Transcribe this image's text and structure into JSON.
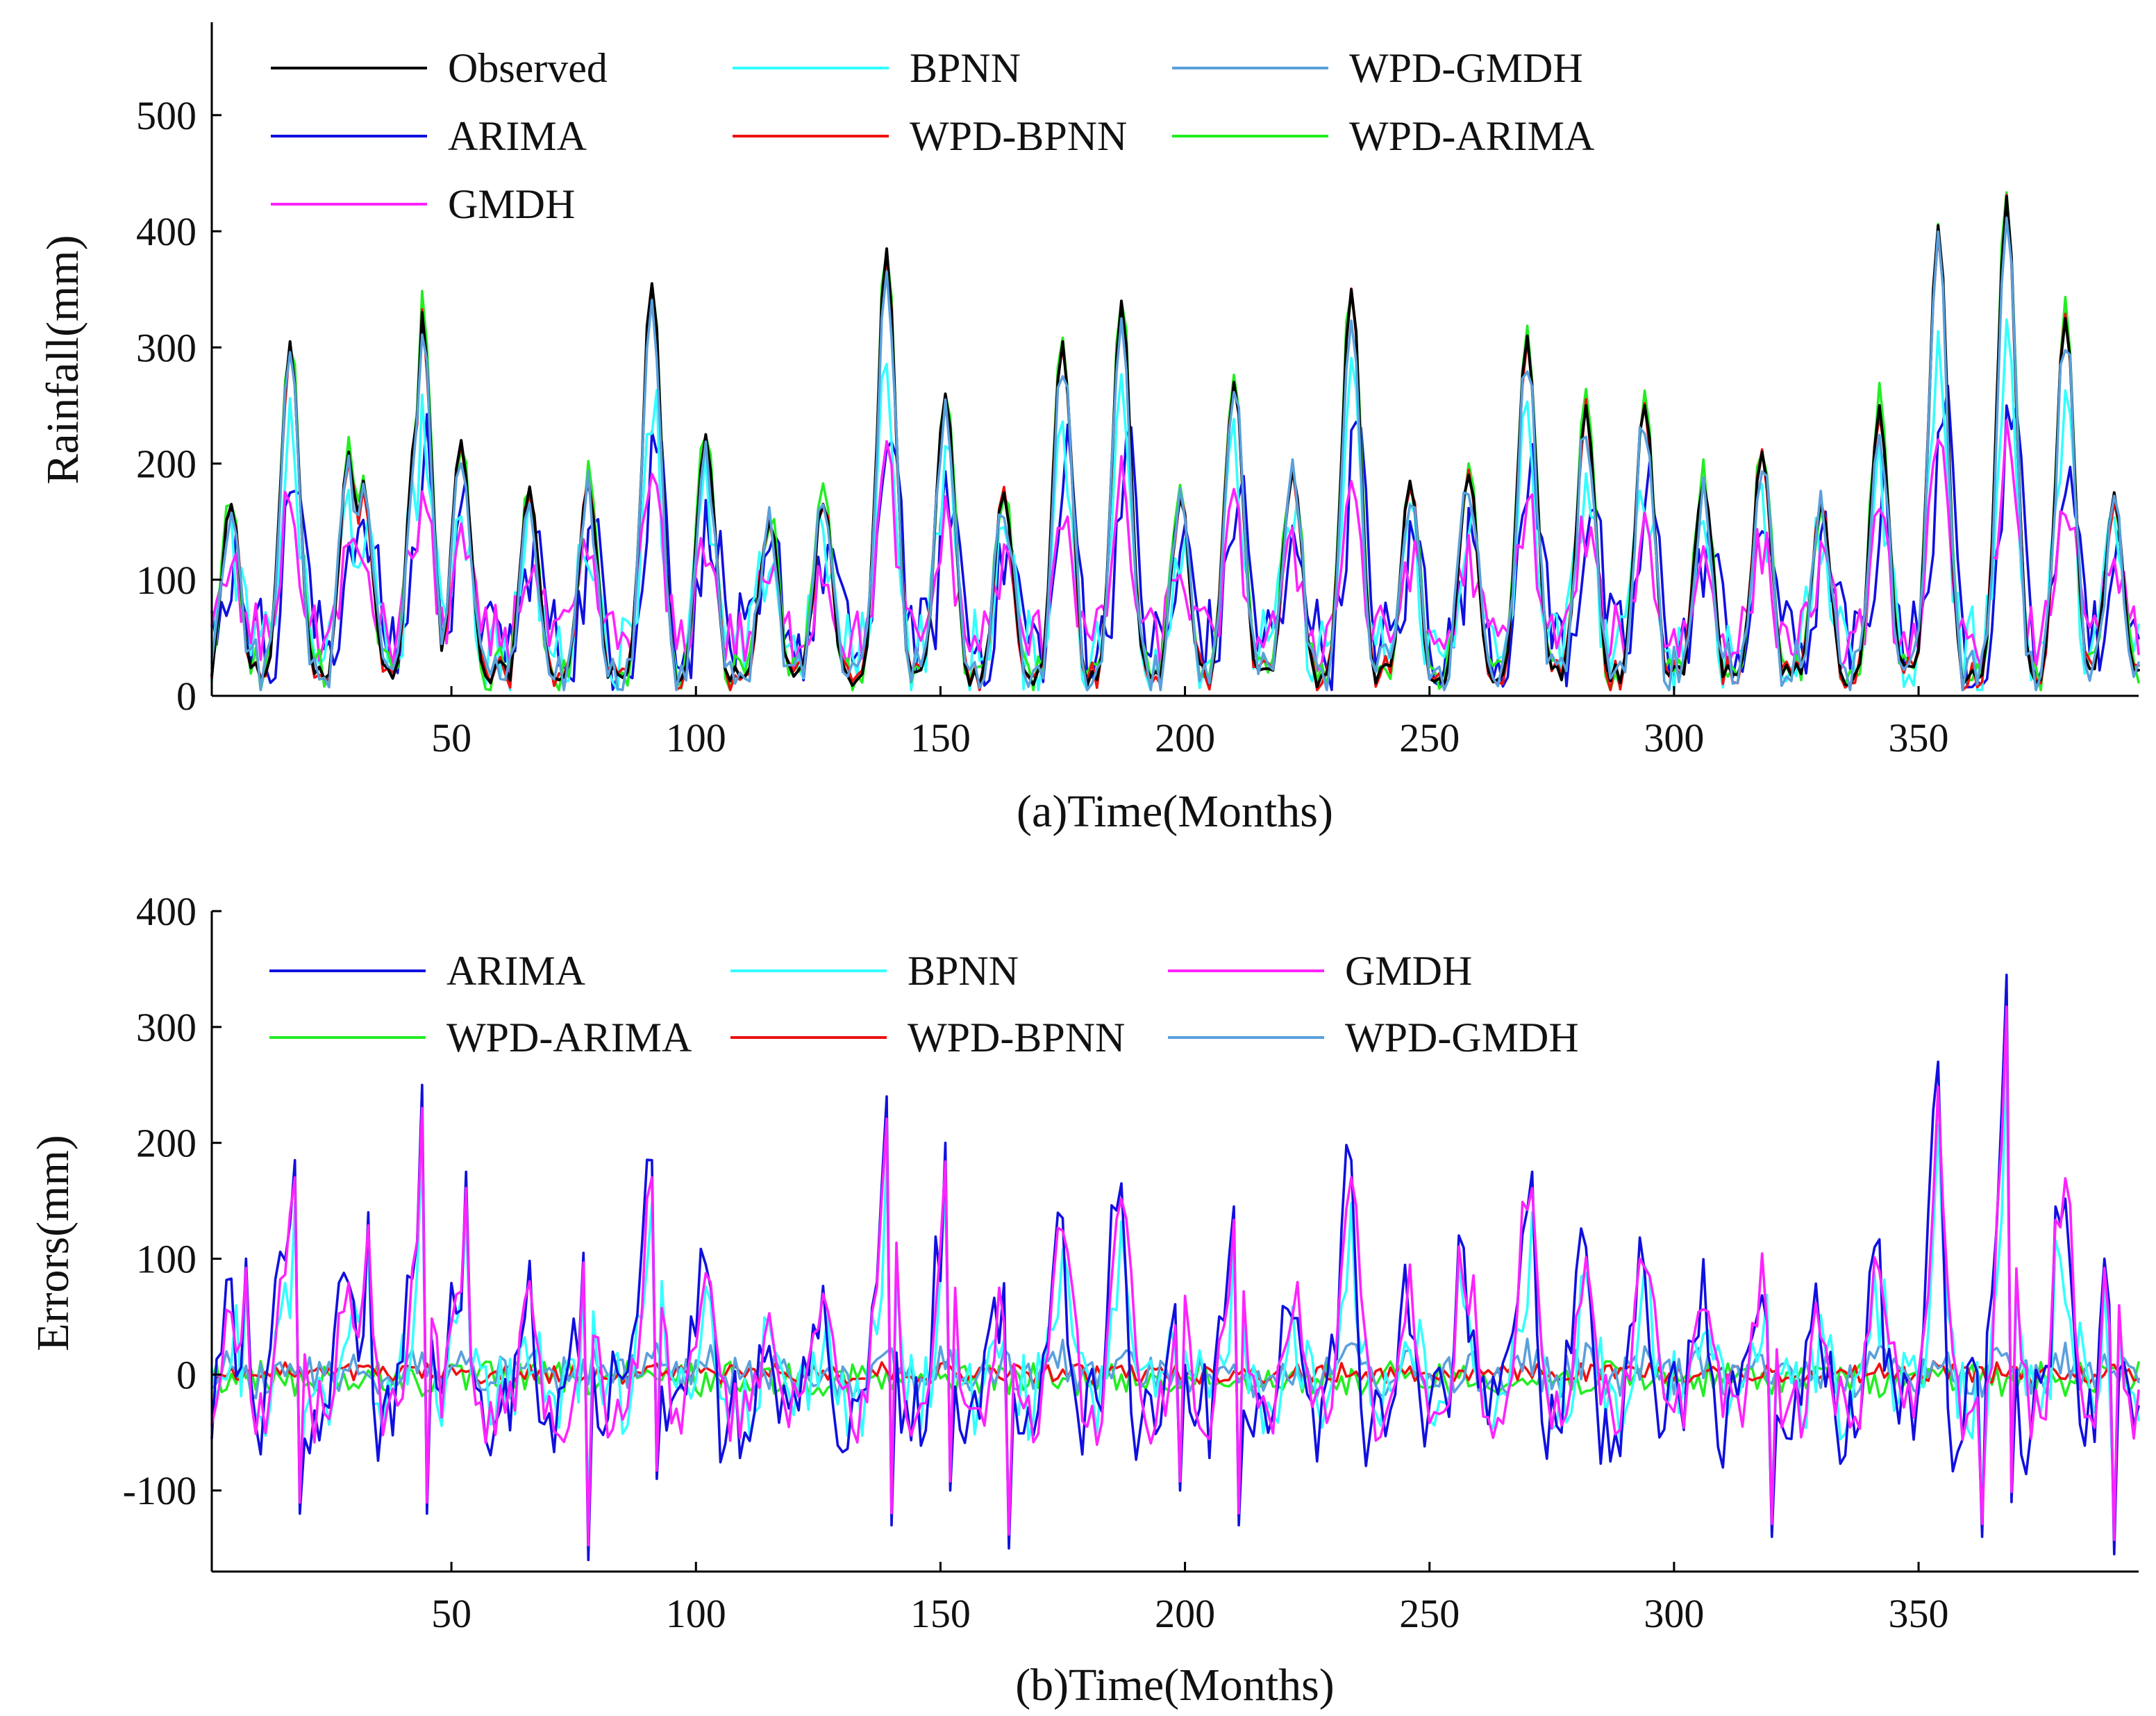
{
  "chart_data": [
    {
      "type": "line",
      "title": "",
      "xlabel": "(a)Time(Months)",
      "ylabel": "Rainfall(mm)",
      "xlim": [
        1,
        395
      ],
      "ylim": [
        0,
        580
      ],
      "xticks": [
        50,
        100,
        150,
        200,
        250,
        300,
        350
      ],
      "yticks": [
        0,
        100,
        200,
        300,
        400,
        500
      ],
      "grid": false,
      "legend_position": "top",
      "legend_order": [
        "Observed",
        "BPNN",
        "WPD-GMDH",
        "ARIMA",
        "WPD-BPNN",
        "WPD-ARIMA",
        "GMDH"
      ],
      "series": [
        {
          "name": "Observed",
          "color": "#000000"
        },
        {
          "name": "ARIMA",
          "color": "#1010e0"
        },
        {
          "name": "WPD-ARIMA",
          "color": "#22ee22"
        },
        {
          "name": "BPNN",
          "color": "#33ffff"
        },
        {
          "name": "WPD-BPNN",
          "color": "#ee1111"
        },
        {
          "name": "GMDH",
          "color": "#ff22ff"
        },
        {
          "name": "WPD-GMDH",
          "color": "#5aa0dc"
        }
      ],
      "peaks_observed": [
        [
          5,
          165
        ],
        [
          17,
          305
        ],
        [
          29,
          210
        ],
        [
          32,
          185
        ],
        [
          43,
          240
        ],
        [
          44,
          330
        ],
        [
          52,
          220
        ],
        [
          66,
          180
        ],
        [
          78,
          185
        ],
        [
          91,
          355
        ],
        [
          102,
          225
        ],
        [
          115,
          150
        ],
        [
          126,
          165
        ],
        [
          139,
          385
        ],
        [
          151,
          260
        ],
        [
          163,
          175
        ],
        [
          175,
          305
        ],
        [
          187,
          340
        ],
        [
          199,
          170
        ],
        [
          210,
          270
        ],
        [
          222,
          195
        ],
        [
          234,
          350
        ],
        [
          246,
          185
        ],
        [
          258,
          190
        ],
        [
          270,
          310
        ],
        [
          282,
          250
        ],
        [
          294,
          250
        ],
        [
          306,
          185
        ],
        [
          318,
          210
        ],
        [
          330,
          165
        ],
        [
          342,
          250
        ],
        [
          354,
          405
        ],
        [
          368,
          430
        ],
        [
          380,
          325
        ],
        [
          390,
          175
        ]
      ]
    },
    {
      "type": "line",
      "title": "",
      "xlabel": "(b)Time(Months)",
      "ylabel": "Errors(mm)",
      "xlim": [
        1,
        395
      ],
      "ylim": [
        -170,
        400
      ],
      "xticks": [
        50,
        100,
        150,
        200,
        250,
        300,
        350
      ],
      "yticks": [
        -100,
        0,
        100,
        200,
        300,
        400
      ],
      "grid": false,
      "legend_position": "top",
      "legend_order": [
        "ARIMA",
        "BPNN",
        "GMDH",
        "WPD-ARIMA",
        "WPD-BPNN",
        "WPD-GMDH"
      ],
      "series": [
        {
          "name": "ARIMA",
          "color": "#1010e0"
        },
        {
          "name": "WPD-ARIMA",
          "color": "#22ee22"
        },
        {
          "name": "BPNN",
          "color": "#33ffff"
        },
        {
          "name": "WPD-BPNN",
          "color": "#ee1111"
        },
        {
          "name": "GMDH",
          "color": "#ff22ff"
        },
        {
          "name": "WPD-GMDH",
          "color": "#5aa0dc"
        }
      ],
      "notable_errors": [
        [
          8,
          100
        ],
        [
          18,
          185
        ],
        [
          19,
          -120
        ],
        [
          33,
          140
        ],
        [
          44,
          250
        ],
        [
          45,
          -120
        ],
        [
          53,
          175
        ],
        [
          77,
          105
        ],
        [
          78,
          -160
        ],
        [
          91,
          185
        ],
        [
          92,
          -90
        ],
        [
          102,
          95
        ],
        [
          139,
          240
        ],
        [
          140,
          -130
        ],
        [
          151,
          200
        ],
        [
          152,
          -100
        ],
        [
          164,
          -150
        ],
        [
          175,
          135
        ],
        [
          187,
          165
        ],
        [
          199,
          -100
        ],
        [
          210,
          145
        ],
        [
          211,
          -130
        ],
        [
          234,
          185
        ],
        [
          256,
          120
        ],
        [
          271,
          175
        ],
        [
          282,
          110
        ],
        [
          320,
          -140
        ],
        [
          341,
          110
        ],
        [
          354,
          270
        ],
        [
          363,
          -140
        ],
        [
          368,
          345
        ],
        [
          369,
          -110
        ],
        [
          378,
          145
        ],
        [
          388,
          100
        ],
        [
          390,
          -155
        ]
      ]
    }
  ]
}
